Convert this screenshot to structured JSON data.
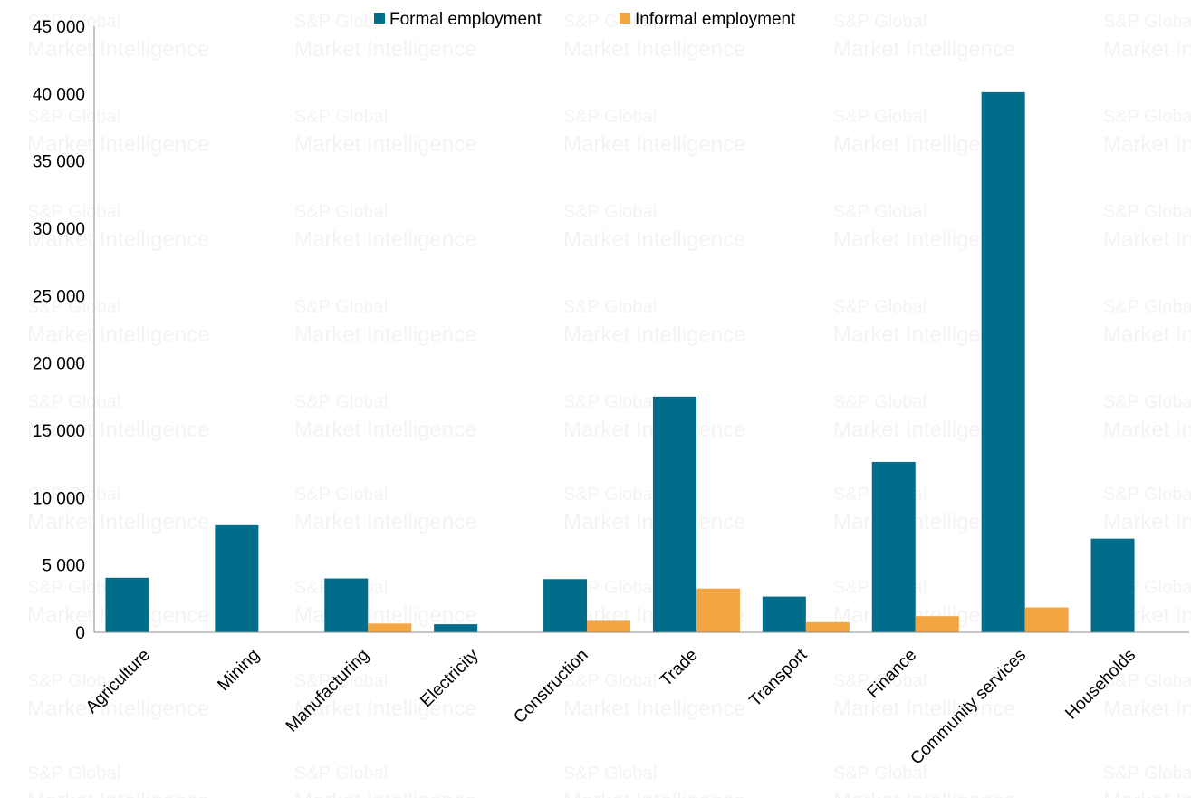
{
  "chart_data": {
    "type": "bar",
    "categories": [
      "Agriculture",
      "Mining",
      "Manufacturing",
      "Electricity",
      "Construction",
      "Trade",
      "Transport",
      "Finance",
      "Community services",
      "Households"
    ],
    "series": [
      {
        "name": "Formal employment",
        "color": "#006E8A",
        "values": [
          4050,
          7950,
          4000,
          600,
          3950,
          17500,
          2650,
          12650,
          40100,
          6950
        ]
      },
      {
        "name": "Informal employment",
        "color": "#F2A541",
        "values": [
          0,
          0,
          650,
          0,
          850,
          3250,
          750,
          1200,
          1850,
          0
        ]
      }
    ],
    "y_ticks": [
      "0",
      "5 000",
      "10 000",
      "15 000",
      "20 000",
      "25 000",
      "30 000",
      "35 000",
      "40 000",
      "45 000"
    ],
    "ylim": [
      0,
      45000
    ],
    "grid": false,
    "legend_position": "top-center",
    "watermark": [
      "S&P Global",
      "Market Intelligence"
    ],
    "title": "",
    "xlabel": "",
    "ylabel": ""
  }
}
